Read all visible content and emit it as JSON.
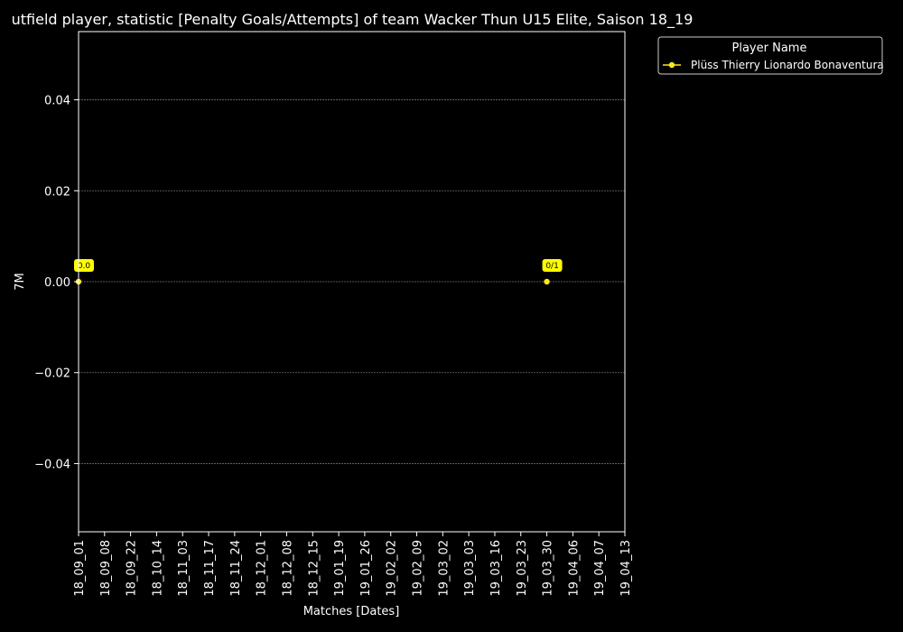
{
  "chart_data": {
    "type": "line",
    "title": "utfield player, statistic [Penalty Goals/Attempts] of team Wacker Thun U15 Elite, Saison 18_19",
    "xlabel": "Matches [Dates]",
    "ylabel": "7M",
    "categories": [
      "18_09_01",
      "18_09_08",
      "18_09_22",
      "18_10_14",
      "18_11_03",
      "18_11_17",
      "18_11_24",
      "18_12_01",
      "18_12_08",
      "18_12_15",
      "19_01_19",
      "19_01_26",
      "19_02_02",
      "19_02_09",
      "19_03_02",
      "19_03_03",
      "19_03_16",
      "19_03_23",
      "19_03_30",
      "19_04_06",
      "19_04_07",
      "19_04_13"
    ],
    "ylim": [
      -0.055,
      0.055
    ],
    "yticks": [
      -0.04,
      -0.02,
      0.0,
      0.02,
      0.04
    ],
    "ytick_labels": [
      "−0.04",
      "−0.02",
      "0.00",
      "0.02",
      "0.04"
    ],
    "grid": true,
    "legend": {
      "title": "Player Name",
      "placement": "outside-top-right"
    },
    "series": [
      {
        "name": "Plüss Thierry Lionardo Bonaventura",
        "color": "#ffe81a",
        "points": [
          {
            "x": "18_09_01",
            "y": 0.0,
            "label": "0.0"
          },
          {
            "x": "19_03_30",
            "y": 0.0,
            "label": "0/1"
          }
        ]
      }
    ]
  },
  "colors": {
    "background": "#000000",
    "foreground": "#ffffff",
    "grid": "#6f6f6f",
    "annotation_bg": "#ffff00"
  }
}
